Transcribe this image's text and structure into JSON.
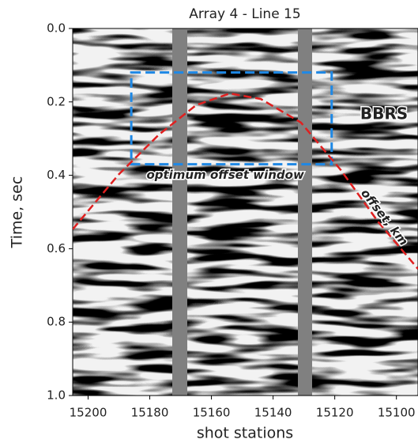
{
  "chart_data": {
    "type": "image",
    "title": "Array 4 - Line 15",
    "x_label": "shot stations",
    "y_label": "Time, sec",
    "xlim": [
      15205,
      15093
    ],
    "ylim": [
      0,
      1
    ],
    "y_inverted": true,
    "xticks": [
      15200,
      15180,
      15160,
      15140,
      15120,
      15100
    ],
    "yticks": [
      {
        "value": 0,
        "label": "0.0"
      },
      0.2,
      0.4,
      0.6,
      0.8,
      {
        "value": 1,
        "label": "1.0"
      }
    ],
    "window": {
      "color": "#1e88e5",
      "x": [
        15186,
        15121
      ],
      "y": [
        0.12,
        0.37
      ]
    },
    "curve": {
      "color": "#e02020",
      "x": [
        15205,
        15190,
        15177,
        15165,
        15154,
        15144,
        15131,
        15118,
        15106,
        15093
      ],
      "y": [
        0.547,
        0.397,
        0.289,
        0.209,
        0.177,
        0.192,
        0.256,
        0.386,
        0.526,
        0.655
      ]
    },
    "annotations": [
      {
        "text": "BBRS",
        "x": 15104,
        "y": 0.235,
        "color": "#e02020",
        "rotation": 0
      },
      {
        "text": "optimum offset window",
        "x": 15155.5,
        "y": 0.4,
        "color": "#1e88e5",
        "rotation": 0
      },
      {
        "text": "offset, km",
        "x": 15104,
        "y": 0.515,
        "color": "#e02020",
        "rotation": 52
      }
    ]
  }
}
